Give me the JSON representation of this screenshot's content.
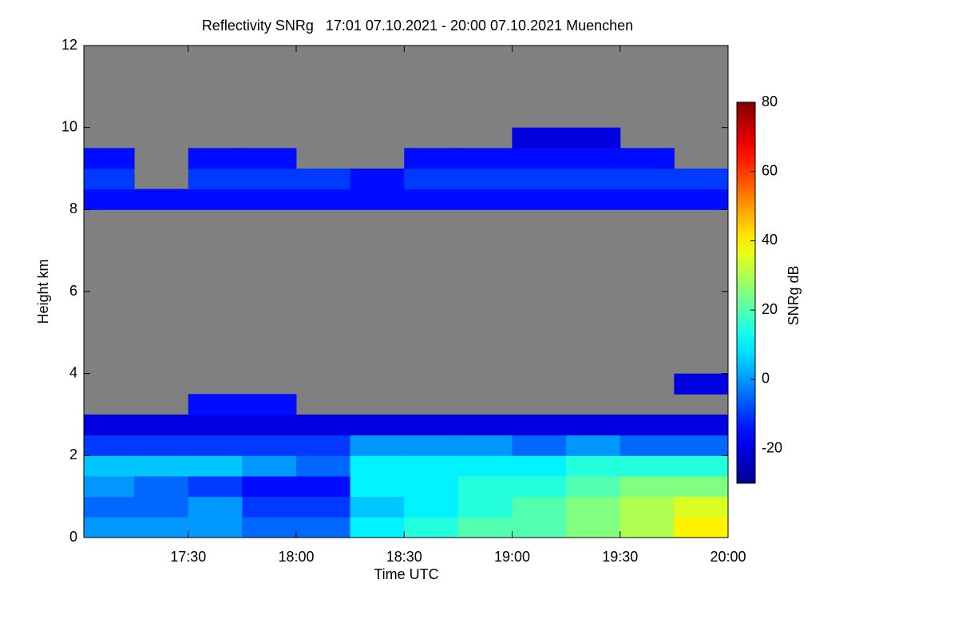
{
  "chart_data": {
    "type": "heatmap",
    "title": "Reflectivity SNRg   17:01 07.10.2021 - 20:00 07.10.2021 Muenchen",
    "x_label": "Time UTC",
    "y_label": "Height km",
    "colorbar_label": "SNRg dB",
    "colormap": "jet",
    "missing_color": "#808080",
    "x_bins": [
      17.0167,
      17.25,
      17.5,
      17.75,
      18,
      18.25,
      18.5,
      18.75,
      19,
      19.25,
      19.5,
      19.75,
      20
    ],
    "y_bins": [
      0,
      0.5,
      1,
      1.5,
      2,
      2.5,
      3,
      3.5,
      4,
      4.5,
      5,
      5.5,
      6,
      6.5,
      7,
      7.5,
      8,
      8.5,
      9,
      9.5,
      10,
      10.5,
      11,
      11.5,
      12
    ],
    "z": [
      [
        0,
        0,
        0,
        -5,
        -5,
        10,
        15,
        20,
        20,
        25,
        30,
        40
      ],
      [
        -5,
        -5,
        0,
        -10,
        -10,
        5,
        10,
        15,
        20,
        25,
        30,
        35
      ],
      [
        0,
        -5,
        -10,
        -15,
        -15,
        10,
        10,
        15,
        15,
        20,
        25,
        25
      ],
      [
        5,
        5,
        5,
        0,
        -5,
        10,
        10,
        10,
        10,
        15,
        15,
        15
      ],
      [
        -10,
        -10,
        -10,
        -10,
        -10,
        0,
        0,
        0,
        -5,
        0,
        -5,
        -5
      ],
      [
        -20,
        -20,
        -20,
        -20,
        -20,
        -20,
        -20,
        -20,
        -20,
        -20,
        -20,
        -20
      ],
      [
        null,
        null,
        -15,
        -15,
        null,
        null,
        null,
        null,
        null,
        null,
        null,
        null
      ],
      [
        null,
        null,
        null,
        null,
        null,
        null,
        null,
        null,
        null,
        null,
        null,
        -20
      ],
      [
        null,
        null,
        null,
        null,
        null,
        null,
        null,
        null,
        null,
        null,
        null,
        null
      ],
      [
        null,
        null,
        null,
        null,
        null,
        null,
        null,
        null,
        null,
        null,
        null,
        null
      ],
      [
        null,
        null,
        null,
        null,
        null,
        null,
        null,
        null,
        null,
        null,
        null,
        null
      ],
      [
        null,
        null,
        null,
        null,
        null,
        null,
        null,
        null,
        null,
        null,
        null,
        null
      ],
      [
        null,
        null,
        null,
        null,
        null,
        null,
        null,
        null,
        null,
        null,
        null,
        null
      ],
      [
        null,
        null,
        null,
        null,
        null,
        null,
        null,
        null,
        null,
        null,
        null,
        null
      ],
      [
        null,
        null,
        null,
        null,
        null,
        null,
        null,
        null,
        null,
        null,
        null,
        null
      ],
      [
        null,
        null,
        null,
        null,
        null,
        null,
        null,
        null,
        null,
        null,
        null,
        null
      ],
      [
        -15,
        -15,
        -15,
        -15,
        -15,
        -15,
        -15,
        -15,
        -15,
        -15,
        -15,
        -15
      ],
      [
        -10,
        null,
        -10,
        -10,
        -10,
        -15,
        -10,
        -10,
        -10,
        -10,
        -10,
        -10
      ],
      [
        -15,
        null,
        -15,
        -15,
        null,
        null,
        -15,
        -15,
        -15,
        -15,
        -15,
        null
      ],
      [
        null,
        null,
        null,
        null,
        null,
        null,
        null,
        null,
        -20,
        -20,
        null,
        null
      ],
      [
        null,
        null,
        null,
        null,
        null,
        null,
        null,
        null,
        null,
        null,
        null,
        null
      ],
      [
        null,
        null,
        null,
        null,
        null,
        null,
        null,
        null,
        null,
        null,
        null,
        null
      ],
      [
        null,
        null,
        null,
        null,
        null,
        null,
        null,
        null,
        null,
        null,
        null,
        null
      ],
      [
        null,
        null,
        null,
        null,
        null,
        null,
        null,
        null,
        null,
        null,
        null,
        null
      ]
    ],
    "xlim": [
      17.0167,
      20
    ],
    "ylim": [
      0,
      12
    ],
    "clim": [
      -30,
      80
    ],
    "xticks": [
      {
        "value": 17.5,
        "label": "17:30"
      },
      {
        "value": 18,
        "label": "18:00"
      },
      {
        "value": 18.5,
        "label": "18:30"
      },
      {
        "value": 19,
        "label": "19:00"
      },
      {
        "value": 19.5,
        "label": "19:30"
      },
      {
        "value": 20,
        "label": "20:00"
      }
    ],
    "yticks": [
      0,
      2,
      4,
      6,
      8,
      10,
      12
    ],
    "cticks": [
      -20,
      0,
      20,
      40,
      60,
      80
    ]
  }
}
